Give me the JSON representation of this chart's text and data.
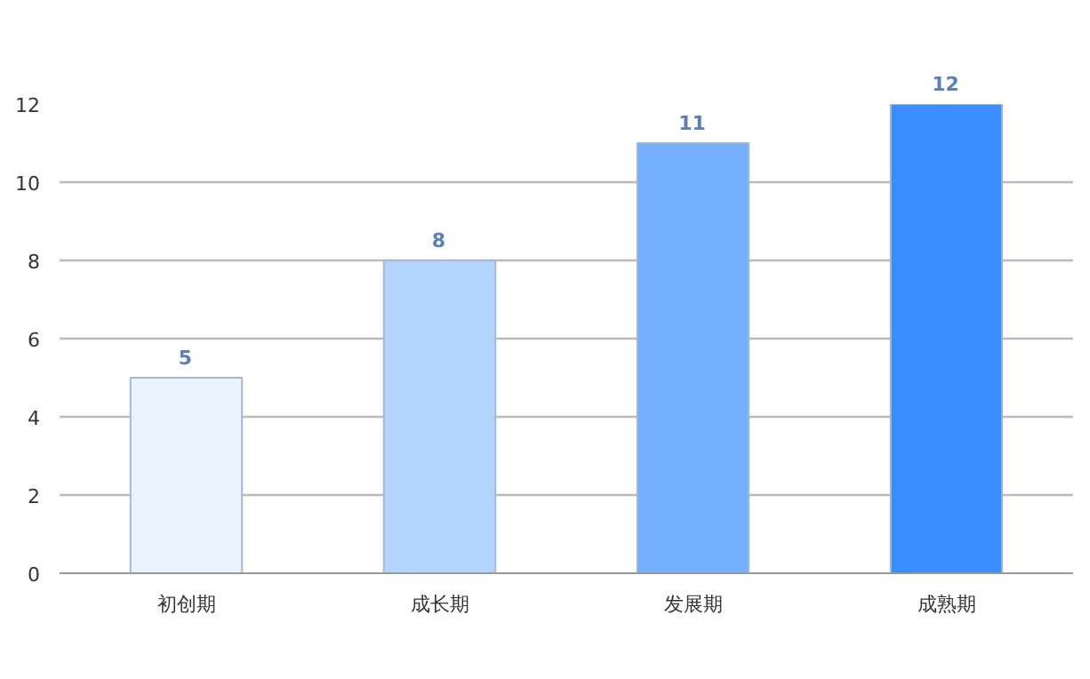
{
  "chart_data": {
    "type": "bar",
    "categories": [
      "初创期",
      "成长期",
      "发展期",
      "成熟期"
    ],
    "values": [
      5,
      8,
      11,
      12
    ],
    "colors": [
      "#eaf2fe",
      "#b3d4ff",
      "#75b0ff",
      "#3a8eff"
    ],
    "ylim": [
      0,
      12
    ],
    "yticks": [
      0,
      2,
      4,
      6,
      8,
      10,
      12
    ],
    "grid": "y",
    "data_labels": true
  }
}
